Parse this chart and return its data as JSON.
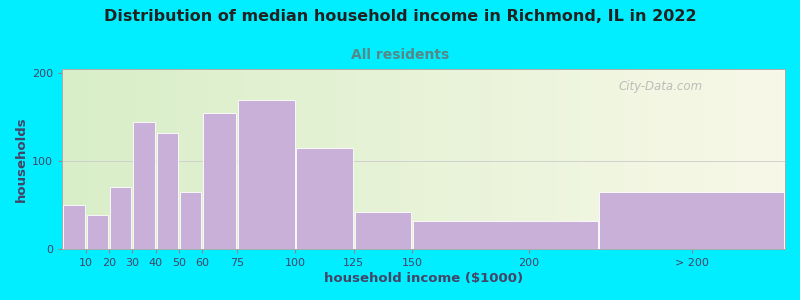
{
  "title": "Distribution of median household income in Richmond, IL in 2022",
  "subtitle": "All residents",
  "xlabel": "household income ($1000)",
  "ylabel": "households",
  "bar_color": "#c8b0d8",
  "bar_edgecolor": "white",
  "background_color": "#00eeff",
  "plot_bg_color_left": "#d8eec8",
  "plot_bg_color_right": "#f0f0e0",
  "values": [
    50,
    38,
    70,
    145,
    132,
    65,
    155,
    170,
    115,
    42,
    32,
    65
  ],
  "bar_lefts": [
    0,
    10,
    20,
    30,
    40,
    50,
    60,
    75,
    100,
    125,
    150,
    230
  ],
  "bar_widths": [
    10,
    10,
    10,
    10,
    10,
    10,
    15,
    25,
    25,
    25,
    80,
    80
  ],
  "xlim": [
    0,
    310
  ],
  "ylim": [
    0,
    205
  ],
  "yticks": [
    0,
    100,
    200
  ],
  "xtick_positions": [
    10,
    20,
    30,
    40,
    50,
    60,
    75,
    100,
    125,
    150,
    200,
    270
  ],
  "xtick_labels": [
    "10",
    "20",
    "30",
    "40",
    "50",
    "60",
    "75",
    "100",
    "125",
    "150",
    "200",
    "> 200"
  ],
  "watermark": "City-Data.com",
  "title_fontsize": 11.5,
  "subtitle_fontsize": 10,
  "axis_label_fontsize": 9.5,
  "tick_fontsize": 8,
  "title_color": "#222222",
  "subtitle_color": "#558888",
  "axis_label_color": "#444466",
  "tick_color": "#444466"
}
